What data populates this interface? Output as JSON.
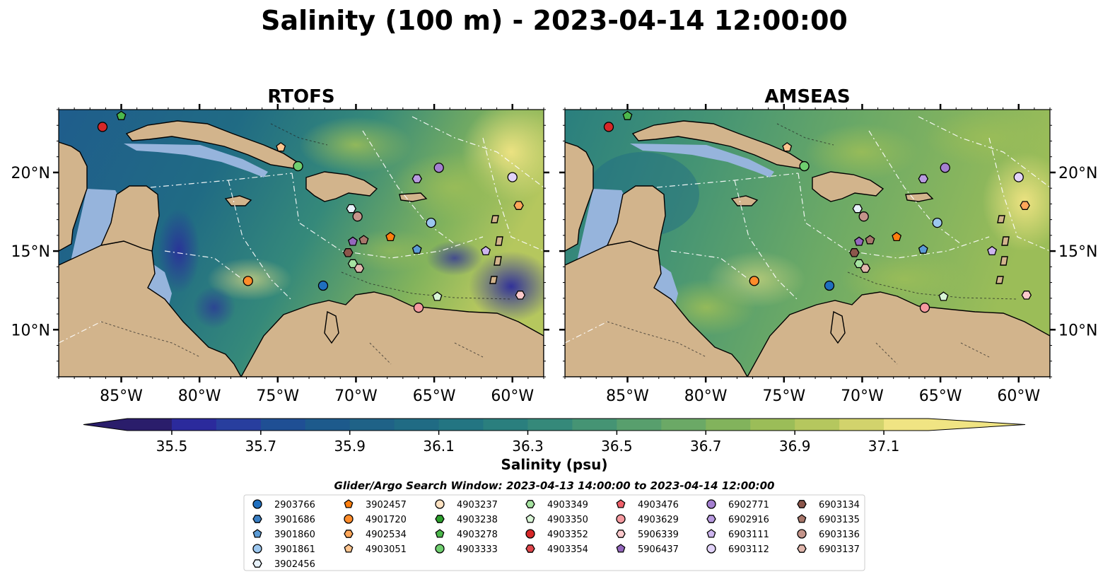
{
  "figure": {
    "title": "Salinity (100 m) - 2023-04-14 12:00:00"
  },
  "panels": [
    {
      "title": "RTOFS"
    },
    {
      "title": "AMSEAS"
    }
  ],
  "map_extent": {
    "lon_min": -89,
    "lon_max": -58,
    "lat_min": 7,
    "lat_max": 24
  },
  "axes": {
    "lon_ticks": [
      {
        "value": -85,
        "label": "85°W"
      },
      {
        "value": -80,
        "label": "80°W"
      },
      {
        "value": -75,
        "label": "75°W"
      },
      {
        "value": -70,
        "label": "70°W"
      },
      {
        "value": -65,
        "label": "65°W"
      },
      {
        "value": -60,
        "label": "60°W"
      }
    ],
    "lat_ticks": [
      {
        "value": 20,
        "label": "20°N"
      },
      {
        "value": 15,
        "label": "15°N"
      },
      {
        "value": 10,
        "label": "10°N"
      }
    ]
  },
  "colorbar": {
    "label": "Salinity (psu)",
    "min": 35.4,
    "max": 37.2,
    "extend": "both",
    "ticks": [
      "35.5",
      "35.7",
      "35.9",
      "36.1",
      "36.3",
      "36.5",
      "36.7",
      "36.9",
      "37.1"
    ],
    "colors": [
      "#2a1d6b",
      "#2b2a9c",
      "#283e9e",
      "#1f4f94",
      "#1d5a8c",
      "#1f6287",
      "#206b84",
      "#237582",
      "#2a7f7e",
      "#35897a",
      "#459474",
      "#589f6d",
      "#6ba966",
      "#82b35c",
      "#9bbd58",
      "#b5c75e",
      "#d2d36c",
      "#f0e483"
    ]
  },
  "colors": {
    "land": "#d2b48c",
    "shelf": "#96b4dc",
    "coast": "#000000"
  },
  "legend": {
    "title": "Glider/Argo Search Window: 2023-04-13 14:00:00 to 2023-04-14 12:00:00",
    "entries": [
      {
        "id": "2903766",
        "marker": "circle",
        "color": "#1f6fbf"
      },
      {
        "id": "3901686",
        "marker": "hexagon",
        "color": "#3a7fc4"
      },
      {
        "id": "3901860",
        "marker": "pentagon",
        "color": "#5b9bd5"
      },
      {
        "id": "3901861",
        "marker": "circle",
        "color": "#9cc7ef"
      },
      {
        "id": "3902456",
        "marker": "hexagon",
        "color": "#e8f2fb"
      },
      {
        "id": "3902457",
        "marker": "pentagon",
        "color": "#ff7f0e"
      },
      {
        "id": "4901720",
        "marker": "circle",
        "color": "#ff8c2a"
      },
      {
        "id": "4902534",
        "marker": "hexagon",
        "color": "#ffa75a"
      },
      {
        "id": "4903051",
        "marker": "pentagon",
        "color": "#ffc58f"
      },
      {
        "id": "4903237",
        "marker": "circle",
        "color": "#ffe2c2"
      },
      {
        "id": "4903238",
        "marker": "hexagon",
        "color": "#2ca02c"
      },
      {
        "id": "4903278",
        "marker": "pentagon",
        "color": "#4cb84c"
      },
      {
        "id": "4903333",
        "marker": "circle",
        "color": "#6fcf6f"
      },
      {
        "id": "4903349",
        "marker": "hexagon",
        "color": "#a6e3a1"
      },
      {
        "id": "4903350",
        "marker": "pentagon",
        "color": "#d9f5d6"
      },
      {
        "id": "4903352",
        "marker": "circle",
        "color": "#d62728"
      },
      {
        "id": "4903354",
        "marker": "hexagon",
        "color": "#e0474c"
      },
      {
        "id": "4903476",
        "marker": "pentagon",
        "color": "#f0606a"
      },
      {
        "id": "4903629",
        "marker": "circle",
        "color": "#f59aa0"
      },
      {
        "id": "5906339",
        "marker": "hexagon",
        "color": "#fbc9cc"
      },
      {
        "id": "5906437",
        "marker": "pentagon",
        "color": "#9467bd"
      },
      {
        "id": "6902771",
        "marker": "circle",
        "color": "#a47fd0"
      },
      {
        "id": "6902916",
        "marker": "hexagon",
        "color": "#b99be0"
      },
      {
        "id": "6903111",
        "marker": "pentagon",
        "color": "#cdb5ee"
      },
      {
        "id": "6903112",
        "marker": "circle",
        "color": "#e2d3f9"
      },
      {
        "id": "6903134",
        "marker": "hexagon",
        "color": "#8c564b"
      },
      {
        "id": "6903135",
        "marker": "pentagon",
        "color": "#a8776b"
      },
      {
        "id": "6903136",
        "marker": "circle",
        "color": "#c4948a"
      },
      {
        "id": "6903137",
        "marker": "hexagon",
        "color": "#e1b7ad"
      }
    ]
  },
  "floats": [
    {
      "id": "4903352",
      "lon": -86.2,
      "lat": 22.9
    },
    {
      "id": "4903278",
      "lon": -85.0,
      "lat": 23.6
    },
    {
      "id": "4903051",
      "lon": -74.8,
      "lat": 21.6
    },
    {
      "id": "4903333",
      "lon": -73.7,
      "lat": 20.4
    },
    {
      "id": "6902916",
      "lon": -66.1,
      "lat": 19.6
    },
    {
      "id": "6902771",
      "lon": -64.7,
      "lat": 20.3
    },
    {
      "id": "6903112",
      "lon": -60.0,
      "lat": 19.7
    },
    {
      "id": "4902534",
      "lon": -59.6,
      "lat": 17.9
    },
    {
      "id": "3902456",
      "lon": -70.3,
      "lat": 17.7
    },
    {
      "id": "6903136",
      "lon": -69.9,
      "lat": 17.2
    },
    {
      "id": "3901861",
      "lon": -65.2,
      "lat": 16.8
    },
    {
      "id": "3902457",
      "lon": -67.8,
      "lat": 15.9
    },
    {
      "id": "5906437",
      "lon": -70.2,
      "lat": 15.6
    },
    {
      "id": "6903135",
      "lon": -69.5,
      "lat": 15.7
    },
    {
      "id": "6903134",
      "lon": -70.5,
      "lat": 14.9
    },
    {
      "id": "3901860",
      "lon": -66.1,
      "lat": 15.1
    },
    {
      "id": "6903111",
      "lon": -61.7,
      "lat": 15.0
    },
    {
      "id": "4903349",
      "lon": -70.2,
      "lat": 14.2
    },
    {
      "id": "6903137",
      "lon": -69.8,
      "lat": 13.9
    },
    {
      "id": "4901720",
      "lon": -76.9,
      "lat": 13.1
    },
    {
      "id": "2903766",
      "lon": -72.1,
      "lat": 12.8
    },
    {
      "id": "4903350",
      "lon": -64.8,
      "lat": 12.1
    },
    {
      "id": "5906339",
      "lon": -59.5,
      "lat": 12.2
    },
    {
      "id": "4903629",
      "lon": -66.0,
      "lat": 11.4
    }
  ]
}
